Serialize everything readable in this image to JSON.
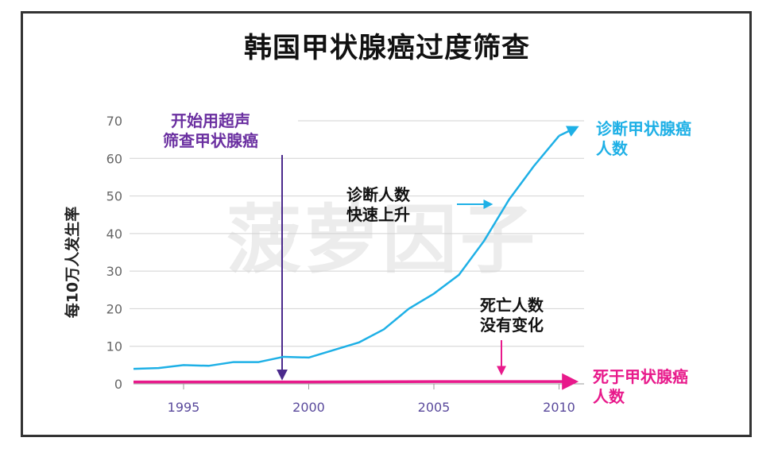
{
  "title": "韩国甲状腺癌过度筛查",
  "watermark": "菠萝因子",
  "annotations": {
    "screening_start": "开始用超声\n筛查甲状腺癌",
    "diagnosis_rise": "诊断人数\n快速上升",
    "deaths_flat": "死亡人数\n没有变化",
    "diagnosis_series_label": "诊断甲状腺癌\n人数",
    "death_series_label": "死于甲状腺癌\n人数"
  },
  "colors": {
    "diagnosis": "#1eb0e6",
    "death": "#e8198b",
    "arrow_purple": "#4b2a8c",
    "tick_text": "#5a4a9c"
  },
  "chart_data": {
    "type": "line",
    "title": "韩国甲状腺癌过度筛查",
    "xlabel": "",
    "ylabel": "每10万人发生率",
    "xlim": [
      1993,
      2011
    ],
    "ylim": [
      0,
      70
    ],
    "x_ticks": [
      1995,
      2000,
      2005,
      2010
    ],
    "y_ticks": [
      0,
      10,
      20,
      30,
      40,
      50,
      60,
      70
    ],
    "grid": "horizontal",
    "series": [
      {
        "name": "诊断甲状腺癌人数",
        "color": "#1eb0e6",
        "x": [
          1993,
          1994,
          1995,
          1996,
          1997,
          1998,
          1999,
          2000,
          2001,
          2002,
          2003,
          2004,
          2005,
          2006,
          2007,
          2008,
          2009,
          2010
        ],
        "y": [
          4,
          4.2,
          5,
          4.8,
          5.8,
          5.8,
          7.2,
          7,
          9,
          11,
          14.5,
          20,
          24,
          29,
          38,
          49,
          58,
          66
        ]
      },
      {
        "name": "死于甲状腺癌人数",
        "color": "#e8198b",
        "x": [
          1993,
          1995,
          2000,
          2005,
          2010
        ],
        "y": [
          0.5,
          0.5,
          0.5,
          0.6,
          0.6
        ]
      }
    ],
    "markers": [
      {
        "x": 1999,
        "label": "开始用超声筛查甲状腺癌"
      }
    ]
  }
}
